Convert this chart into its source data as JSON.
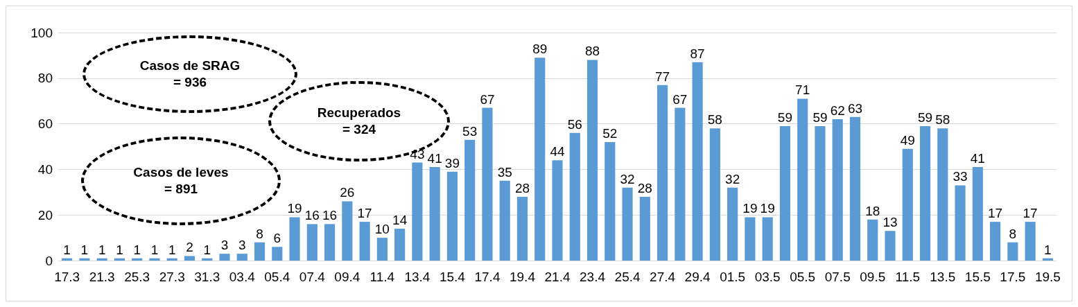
{
  "chart_data": {
    "type": "bar",
    "categories": [
      "17.3",
      null,
      "21.3",
      null,
      "25.3",
      null,
      "27.3",
      null,
      "31.3",
      null,
      "03.4",
      null,
      "05.4",
      null,
      "07.4",
      null,
      "09.4",
      null,
      "11.4",
      null,
      "13.4",
      null,
      "15.4",
      null,
      "17.4",
      null,
      "19.4",
      null,
      "21.4",
      null,
      "23.4",
      null,
      "25.4",
      null,
      "27.4",
      null,
      "29.4",
      null,
      "01.5",
      null,
      "03.5",
      null,
      "05.5",
      null,
      "07.5",
      null,
      "09.5",
      null,
      "11.5",
      null,
      "13.5",
      null,
      "15.5",
      null,
      "17.5",
      null,
      "19.5"
    ],
    "values": [
      1,
      1,
      1,
      1,
      1,
      1,
      1,
      2,
      1,
      3,
      3,
      8,
      6,
      19,
      16,
      16,
      26,
      17,
      10,
      14,
      43,
      41,
      39,
      53,
      67,
      35,
      28,
      89,
      44,
      56,
      88,
      52,
      32,
      28,
      77,
      67,
      87,
      58,
      32,
      19,
      19,
      59,
      71,
      59,
      62,
      63,
      18,
      13,
      49,
      59,
      58,
      33,
      41,
      17,
      8,
      17,
      1
    ],
    "color": "#5b9bd5",
    "ylim": [
      0,
      100
    ],
    "yticks": [
      0,
      20,
      40,
      60,
      80,
      100
    ],
    "grid": "y",
    "data_labels": true,
    "annotations": [
      "Casos de SRAG\n= 936",
      "Recuperados\n= 324",
      "Casos de leves\n= 891"
    ]
  }
}
